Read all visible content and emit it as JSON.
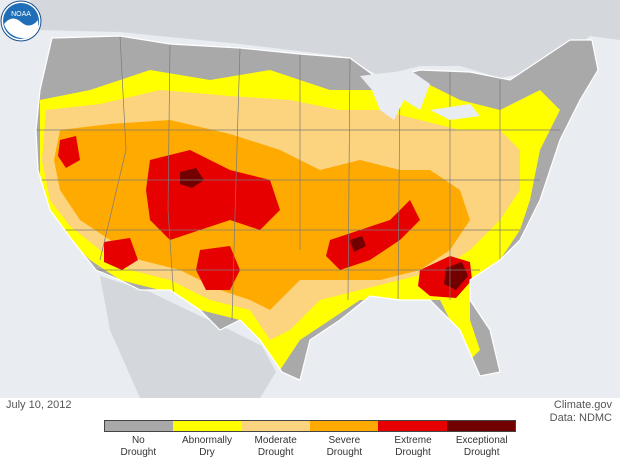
{
  "date": "July 10, 2012",
  "credit": {
    "source": "Climate.gov",
    "data": "Data: NDMC"
  },
  "logo_text": "NOAA",
  "colors": {
    "water": "#e9edf2",
    "land_background": "#c8ccd0",
    "border": "#7a7a7a"
  },
  "legend": [
    {
      "line1": "No",
      "line2": "Drought",
      "color": "#a9a9a9"
    },
    {
      "line1": "Abnormally",
      "line2": "Dry",
      "color": "#ffff00"
    },
    {
      "line1": "Moderate",
      "line2": "Drought",
      "color": "#fcd37f"
    },
    {
      "line1": "Severe",
      "line2": "Drought",
      "color": "#ffaa00"
    },
    {
      "line1": "Extreme",
      "line2": "Drought",
      "color": "#e60000"
    },
    {
      "line1": "Exceptional",
      "line2": "Drought",
      "color": "#730000"
    }
  ]
}
